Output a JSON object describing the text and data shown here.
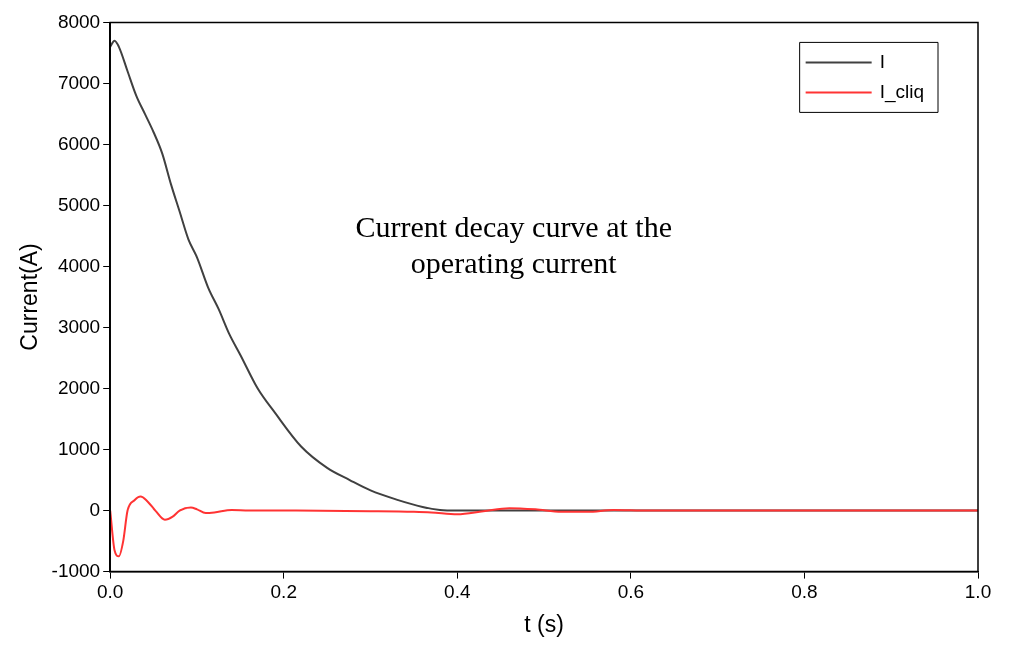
{
  "chart_data": {
    "type": "line",
    "xlabel": "t (s)",
    "ylabel": "Current(A)",
    "xlim": [
      0,
      1
    ],
    "xticks": [
      {
        "value": 0,
        "label": "0.0"
      },
      0.2,
      0.4,
      0.6,
      0.8,
      {
        "value": 1,
        "label": "1.0"
      }
    ],
    "ylim": [
      -1000,
      8000
    ],
    "yticks": [
      -1000,
      0,
      1000,
      2000,
      3000,
      4000,
      5000,
      6000,
      7000,
      8000
    ],
    "grid": false,
    "legend": "top right",
    "marker": "none",
    "line_style": "solid",
    "annotations": [
      "Current decay curve at the operating current"
    ],
    "series": [
      {
        "name": "I",
        "color": "#404040",
        "x": [
          0,
          0.005,
          0.01,
          0.02,
          0.03,
          0.04,
          0.05,
          0.06,
          0.07,
          0.08,
          0.09,
          0.1,
          0.113,
          0.125,
          0.137,
          0.15,
          0.17,
          0.19,
          0.22,
          0.25,
          0.276,
          0.3,
          0.33,
          0.36,
          0.38,
          0.4,
          0.45,
          0.5,
          0.6,
          0.7,
          0.8,
          0.9,
          1
        ],
        "values": [
          7600,
          7700,
          7600,
          7200,
          6800,
          6500,
          6200,
          5850,
          5350,
          4900,
          4450,
          4150,
          3650,
          3300,
          2900,
          2550,
          2000,
          1600,
          1050,
          700,
          500,
          330,
          180,
          60,
          10,
          0,
          0,
          0,
          0,
          0,
          0,
          0,
          0
        ]
      },
      {
        "name": "I_cliq",
        "color": "#ff3333",
        "x": [
          0,
          0.005,
          0.01,
          0.015,
          0.02,
          0.028,
          0.035,
          0.043,
          0.052,
          0.063,
          0.072,
          0.08,
          0.093,
          0.1,
          0.11,
          0.12,
          0.14,
          0.16,
          0.2,
          0.3,
          0.35,
          0.37,
          0.4,
          0.43,
          0.46,
          0.49,
          0.52,
          0.55,
          0.58,
          0.62,
          0.7,
          0.8,
          0.9,
          1
        ],
        "values": [
          0,
          -650,
          -750,
          -500,
          0,
          170,
          230,
          150,
          0,
          -150,
          -100,
          0,
          50,
          20,
          -40,
          -30,
          10,
          0,
          0,
          -10,
          -20,
          -30,
          -60,
          -10,
          40,
          20,
          -20,
          -20,
          10,
          0,
          0,
          0,
          0,
          0
        ]
      }
    ]
  }
}
